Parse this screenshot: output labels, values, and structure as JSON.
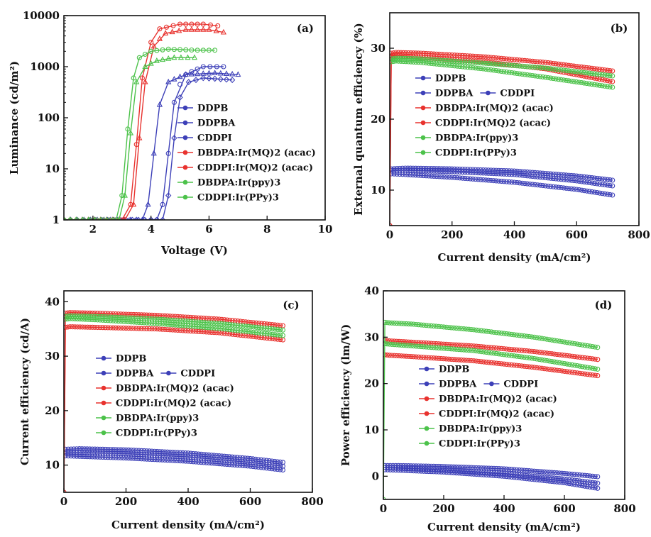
{
  "colors": {
    "blue": "#3d40b8",
    "red": "#e8322e",
    "green": "#4cc24a"
  },
  "chart_data": [
    {
      "type": "line",
      "panel_label": "(a)",
      "xlabel": "Voltage (V)",
      "ylabel": "Luminance (cd/m²)",
      "xlim": [
        1,
        10
      ],
      "ylim": [
        1,
        10000
      ],
      "yscale": "log",
      "xticks": [
        "2",
        "4",
        "6",
        "8",
        "10"
      ],
      "yticks": [
        "1",
        "10",
        "100",
        "1000",
        "10000"
      ],
      "legend": [
        "DDPB",
        "DDPBA",
        "CDDPI",
        "DBDPA:Ir(MQ)2 (acac)",
        "CDDPI:Ir(MQ)2 (acac)",
        "DBDPA:Ir(ppy)3",
        "CDDPI:Ir(PPy)3"
      ],
      "series": [
        {
          "name": "DDPB",
          "color": "blue",
          "marker": "circle",
          "x": [
            1.0,
            3.5,
            4.0,
            4.2,
            4.4,
            4.6,
            4.8,
            5.2,
            5.8,
            6.5
          ],
          "y": [
            1,
            1,
            1,
            1,
            2,
            20,
            200,
            700,
            1000,
            1000
          ]
        },
        {
          "name": "DDPBA",
          "color": "blue",
          "marker": "triangle",
          "x": [
            1.0,
            3.3,
            3.7,
            3.9,
            4.1,
            4.3,
            4.6,
            5.2,
            6.2,
            7.0
          ],
          "y": [
            1,
            1,
            1,
            2,
            20,
            180,
            500,
            700,
            750,
            700
          ]
        },
        {
          "name": "CDDPI",
          "color": "blue",
          "marker": "diamond",
          "x": [
            1.0,
            4.0,
            4.4,
            4.6,
            4.8,
            5.0,
            5.3,
            5.8,
            6.8
          ],
          "y": [
            1,
            1,
            1,
            3,
            40,
            250,
            500,
            600,
            550
          ]
        },
        {
          "name": "DBDPA:Ir(MQ)2 (acac)",
          "color": "red",
          "marker": "circle",
          "x": [
            1.0,
            3.0,
            3.3,
            3.5,
            3.7,
            4.0,
            4.3,
            5.0,
            5.8,
            6.3
          ],
          "y": [
            1,
            1,
            2,
            30,
            600,
            3000,
            5500,
            6800,
            6800,
            6300
          ]
        },
        {
          "name": "CDDPI:Ir(MQ)2 (acac)",
          "color": "red",
          "marker": "triangle",
          "x": [
            1.0,
            3.1,
            3.4,
            3.6,
            3.8,
            4.1,
            4.5,
            5.2,
            6.0,
            6.5
          ],
          "y": [
            1,
            1,
            2,
            40,
            500,
            2500,
            4500,
            5300,
            5300,
            4700
          ]
        },
        {
          "name": "DBDPA:Ir(ppy)3",
          "color": "green",
          "marker": "circle",
          "x": [
            1.0,
            2.8,
            3.0,
            3.2,
            3.4,
            3.6,
            4.0,
            4.6,
            5.6,
            6.2
          ],
          "y": [
            1,
            1,
            3,
            60,
            600,
            1500,
            2000,
            2200,
            2100,
            2100
          ]
        },
        {
          "name": "CDDPI:Ir(PPy)3",
          "color": "green",
          "marker": "triangle",
          "x": [
            1.0,
            2.9,
            3.1,
            3.3,
            3.5,
            3.8,
            4.2,
            4.8,
            5.5
          ],
          "y": [
            1,
            1,
            3,
            50,
            500,
            1000,
            1300,
            1500,
            1500
          ]
        }
      ]
    },
    {
      "type": "line",
      "panel_label": "(b)",
      "xlabel": "Current density (mA/cm²)",
      "ylabel": "External quantum efficiency (%)",
      "xlim": [
        0,
        800
      ],
      "ylim": [
        5,
        35
      ],
      "xticks": [
        "0",
        "200",
        "400",
        "600",
        "800"
      ],
      "yticks": [
        "10",
        "20",
        "30"
      ],
      "legend": [
        "DDPB",
        "DDPBA",
        "CDDPI",
        "DBDPA:Ir(MQ)2 (acac)",
        "CDDPI:Ir(MQ)2 (acac)",
        "DBDPA:Ir(ppy)3",
        "CDDPI:Ir(PPy)3"
      ],
      "series": [
        {
          "name": "DDPB",
          "color": "blue",
          "x": [
            5,
            50,
            200,
            400,
            600,
            715
          ],
          "y": [
            13,
            13.1,
            13,
            12.7,
            12,
            11.4
          ]
        },
        {
          "name": "DDPBA",
          "color": "blue",
          "x": [
            5,
            50,
            200,
            400,
            600,
            715
          ],
          "y": [
            12.8,
            12.8,
            12.6,
            12.2,
            11.3,
            10.6
          ]
        },
        {
          "name": "CDDPI",
          "color": "blue",
          "x": [
            5,
            50,
            200,
            400,
            600,
            715
          ],
          "y": [
            12.3,
            12.2,
            11.8,
            11.1,
            10.1,
            9.3
          ]
        },
        {
          "name": "DBDPA:Ir(MQ)2 (acac)",
          "color": "red",
          "x": [
            0,
            5,
            20,
            100,
            300,
            500,
            715
          ],
          "y": [
            5,
            29.3,
            29.4,
            29.3,
            28.8,
            28,
            26.8
          ]
        },
        {
          "name": "CDDPI:Ir(MQ)2 (acac)",
          "color": "red",
          "x": [
            0,
            5,
            20,
            100,
            300,
            500,
            715
          ],
          "y": [
            5,
            28.9,
            29,
            28.7,
            28.1,
            27.1,
            25.3
          ]
        },
        {
          "name": "DBDPA:Ir(ppy)3",
          "color": "green",
          "x": [
            5,
            20,
            100,
            300,
            500,
            715
          ],
          "y": [
            28.5,
            28.6,
            28.5,
            27.9,
            27.2,
            26.1
          ]
        },
        {
          "name": "CDDPI:Ir(PPy)3",
          "color": "green",
          "x": [
            5,
            20,
            100,
            300,
            500,
            715
          ],
          "y": [
            28.1,
            28.2,
            28,
            27.1,
            25.9,
            24.5
          ]
        }
      ]
    },
    {
      "type": "line",
      "panel_label": "(c)",
      "xlabel": "Current density (mA/cm²)",
      "ylabel": "Current efficiency (cd/A)",
      "xlim": [
        0,
        800
      ],
      "ylim": [
        5,
        42
      ],
      "xticks": [
        "0",
        "200",
        "400",
        "600",
        "800"
      ],
      "yticks": [
        "10",
        "20",
        "30",
        "40"
      ],
      "legend": [
        "DDPB",
        "DDPBA",
        "CDDPI",
        "DBDPA:Ir(MQ)2 (acac)",
        "CDDPI:Ir(MQ)2 (acac)",
        "DBDPA:Ir(ppy)3",
        "CDDPI:Ir(PPy)3"
      ],
      "series": [
        {
          "name": "DDPB",
          "color": "blue",
          "x": [
            5,
            50,
            200,
            400,
            600,
            705
          ],
          "y": [
            12.9,
            13,
            12.8,
            12.2,
            11.2,
            10.5
          ]
        },
        {
          "name": "DDPBA",
          "color": "blue",
          "x": [
            5,
            50,
            200,
            400,
            600,
            705
          ],
          "y": [
            12.3,
            12.3,
            12.1,
            11.5,
            10.5,
            9.8
          ]
        },
        {
          "name": "CDDPI",
          "color": "blue",
          "x": [
            5,
            50,
            200,
            400,
            600,
            705
          ],
          "y": [
            11.7,
            11.6,
            11.3,
            10.7,
            9.8,
            9.1
          ]
        },
        {
          "name": "DBDPA:Ir(MQ)2 (acac)",
          "color": "red",
          "x": [
            0,
            5,
            20,
            100,
            300,
            500,
            705
          ],
          "y": [
            5,
            37.9,
            38,
            37.9,
            37.5,
            36.8,
            35.6
          ]
        },
        {
          "name": "CDDPI:Ir(MQ)2 (acac)",
          "color": "red",
          "x": [
            0,
            5,
            20,
            100,
            300,
            500,
            705
          ],
          "y": [
            5,
            35.3,
            35.4,
            35.3,
            35,
            34.3,
            33
          ]
        },
        {
          "name": "DBDPA:Ir(ppy)3",
          "color": "green",
          "x": [
            5,
            20,
            100,
            300,
            500,
            705
          ],
          "y": [
            37.3,
            37.4,
            37.3,
            36.8,
            36,
            34.8
          ]
        },
        {
          "name": "CDDPI:Ir(PPy)3",
          "color": "green",
          "x": [
            5,
            20,
            100,
            300,
            500,
            705
          ],
          "y": [
            36.8,
            36.9,
            36.7,
            36,
            35.1,
            33.8
          ]
        }
      ]
    },
    {
      "type": "line",
      "panel_label": "(d)",
      "xlabel": "Current density (mA/cm²)",
      "ylabel": "Power efficiency (lm/W)",
      "xlim": [
        0,
        800
      ],
      "ylim": [
        -5,
        40
      ],
      "xticks": [
        "0",
        "200",
        "400",
        "600",
        "800"
      ],
      "yticks": [
        "0",
        "10",
        "20",
        "30",
        "40"
      ],
      "legend": [
        "DDPB",
        "DDPBA",
        "CDDPI",
        "DBDPA:Ir(MQ)2 (acac)",
        "CDDPI:Ir(MQ)2 (acac)",
        "DBDPA:Ir(ppy)3",
        "CDDPI:Ir(PPy)3"
      ],
      "series": [
        {
          "name": "DDPB",
          "color": "blue",
          "x": [
            5,
            50,
            200,
            400,
            600,
            710
          ],
          "y": [
            2.3,
            2.3,
            2.1,
            1.6,
            0.6,
            -0.1
          ]
        },
        {
          "name": "DDPBA",
          "color": "blue",
          "x": [
            5,
            50,
            200,
            400,
            600,
            710
          ],
          "y": [
            1.9,
            1.8,
            1.4,
            0.6,
            -0.6,
            -1.5
          ]
        },
        {
          "name": "CDDPI",
          "color": "blue",
          "x": [
            5,
            50,
            200,
            400,
            600,
            710
          ],
          "y": [
            1.4,
            1.3,
            0.9,
            0,
            -1.4,
            -2.6
          ]
        },
        {
          "name": "DBDPA:Ir(MQ)2 (acac)",
          "color": "red",
          "x": [
            5,
            20,
            100,
            300,
            500,
            710
          ],
          "y": [
            29.3,
            29.2,
            28.9,
            28.1,
            26.9,
            25.2
          ]
        },
        {
          "name": "CDDPI:Ir(MQ)2 (acac)",
          "color": "red",
          "x": [
            5,
            20,
            100,
            300,
            500,
            710
          ],
          "y": [
            26.2,
            26.1,
            25.8,
            24.9,
            23.5,
            21.7
          ]
        },
        {
          "name": "DBDPA:Ir(ppy)3",
          "color": "green",
          "x": [
            5,
            20,
            100,
            300,
            500,
            710
          ],
          "y": [
            28.6,
            28.5,
            28.1,
            27.1,
            25.4,
            23.1
          ]
        },
        {
          "name": "CDDPI:Ir(PPy)3",
          "color": "green",
          "x": [
            0,
            5,
            20,
            100,
            300,
            500,
            710
          ],
          "y": [
            -5,
            33.2,
            33.1,
            32.8,
            31.6,
            30,
            27.8
          ]
        }
      ]
    }
  ]
}
